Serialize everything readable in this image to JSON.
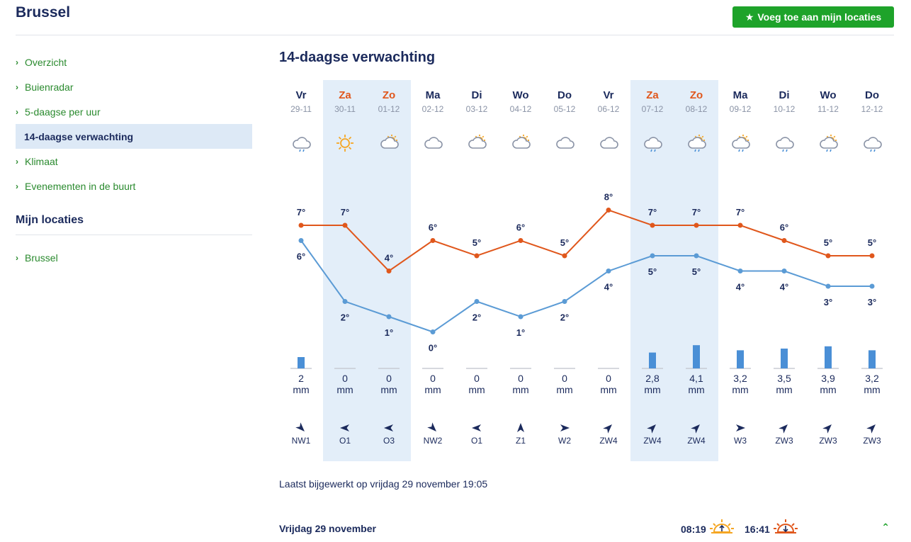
{
  "header": {
    "city": "Brussel",
    "add_button_label": "Voeg toe aan mijn locaties"
  },
  "sidebar": {
    "nav": [
      {
        "label": "Overzicht",
        "active": false
      },
      {
        "label": "Buienradar",
        "active": false
      },
      {
        "label": "5-daagse per uur",
        "active": false
      },
      {
        "label": "14-daagse verwachting",
        "active": true
      },
      {
        "label": "Klimaat",
        "active": false
      },
      {
        "label": "Evenementen in de buurt",
        "active": false
      }
    ],
    "my_locations_heading": "Mijn locaties",
    "locations": [
      {
        "label": "Brussel"
      }
    ]
  },
  "main": {
    "title": "14-daagse verwachting",
    "updated": "Laatst bijgewerkt op vrijdag 29 november 19:05",
    "rain_unit": "mm"
  },
  "colors": {
    "max_line": "#e0571c",
    "min_line": "#5b9bd5",
    "rain_bar": "#4a8fd6",
    "weekend_bg": "#e3eef9",
    "accent_green": "#1ea32a"
  },
  "chart_data": {
    "type": "line",
    "categories": [
      "Vr 29-11",
      "Za 30-11",
      "Zo 01-12",
      "Ma 02-12",
      "Di 03-12",
      "Wo 04-12",
      "Do 05-12",
      "Vr 06-12",
      "Za 07-12",
      "Zo 08-12",
      "Ma 09-12",
      "Di 10-12",
      "Wo 11-12",
      "Do 12-12"
    ],
    "series": [
      {
        "values": [
          7,
          7,
          4,
          6,
          5,
          6,
          5,
          8,
          7,
          7,
          7,
          6,
          5,
          5
        ]
      },
      {
        "values": [
          6,
          2,
          1,
          0,
          2,
          1,
          2,
          4,
          5,
          5,
          4,
          4,
          3,
          3
        ]
      }
    ],
    "precipitation_mm": [
      2,
      0,
      0,
      0,
      0,
      0,
      0,
      0,
      2.8,
      4.1,
      3.2,
      3.5,
      3.9,
      3.2
    ],
    "ylim": [
      -1,
      9
    ]
  },
  "days": [
    {
      "name": "Vr",
      "date": "29-11",
      "weekend": false,
      "icon": "rain-cloud-icon",
      "rain": "2",
      "wind_dir": "NW",
      "wind_label": "NW1"
    },
    {
      "name": "Za",
      "date": "30-11",
      "weekend": true,
      "icon": "sun-icon",
      "rain": "0",
      "wind_dir": "O",
      "wind_label": "O1"
    },
    {
      "name": "Zo",
      "date": "01-12",
      "weekend": true,
      "icon": "partly-cloudy-icon",
      "rain": "0",
      "wind_dir": "O",
      "wind_label": "O3"
    },
    {
      "name": "Ma",
      "date": "02-12",
      "weekend": false,
      "icon": "cloud-icon",
      "rain": "0",
      "wind_dir": "NW",
      "wind_label": "NW2"
    },
    {
      "name": "Di",
      "date": "03-12",
      "weekend": false,
      "icon": "partly-cloudy-icon",
      "rain": "0",
      "wind_dir": "O",
      "wind_label": "O1"
    },
    {
      "name": "Wo",
      "date": "04-12",
      "weekend": false,
      "icon": "partly-cloudy-icon",
      "rain": "0",
      "wind_dir": "Z",
      "wind_label": "Z1"
    },
    {
      "name": "Do",
      "date": "05-12",
      "weekend": false,
      "icon": "cloud-icon",
      "rain": "0",
      "wind_dir": "W",
      "wind_label": "W2"
    },
    {
      "name": "Vr",
      "date": "06-12",
      "weekend": false,
      "icon": "cloud-icon",
      "rain": "0",
      "wind_dir": "ZW",
      "wind_label": "ZW4"
    },
    {
      "name": "Za",
      "date": "07-12",
      "weekend": true,
      "icon": "rain-cloud-icon",
      "rain": "2,8",
      "wind_dir": "ZW",
      "wind_label": "ZW4"
    },
    {
      "name": "Zo",
      "date": "08-12",
      "weekend": true,
      "icon": "sun-rain-cloud-icon",
      "rain": "4,1",
      "wind_dir": "ZW",
      "wind_label": "ZW4"
    },
    {
      "name": "Ma",
      "date": "09-12",
      "weekend": false,
      "icon": "sun-rain-cloud-icon",
      "rain": "3,2",
      "wind_dir": "W",
      "wind_label": "W3"
    },
    {
      "name": "Di",
      "date": "10-12",
      "weekend": false,
      "icon": "rain-cloud-icon",
      "rain": "3,5",
      "wind_dir": "ZW",
      "wind_label": "ZW3"
    },
    {
      "name": "Wo",
      "date": "11-12",
      "weekend": false,
      "icon": "sun-rain-cloud-icon",
      "rain": "3,9",
      "wind_dir": "ZW",
      "wind_label": "ZW3"
    },
    {
      "name": "Do",
      "date": "12-12",
      "weekend": false,
      "icon": "rain-cloud-icon",
      "rain": "3,2",
      "wind_dir": "ZW",
      "wind_label": "ZW3"
    }
  ],
  "day_detail": {
    "title": "Vrijdag 29 november",
    "sunrise": "08:19",
    "sunset": "16:41"
  }
}
